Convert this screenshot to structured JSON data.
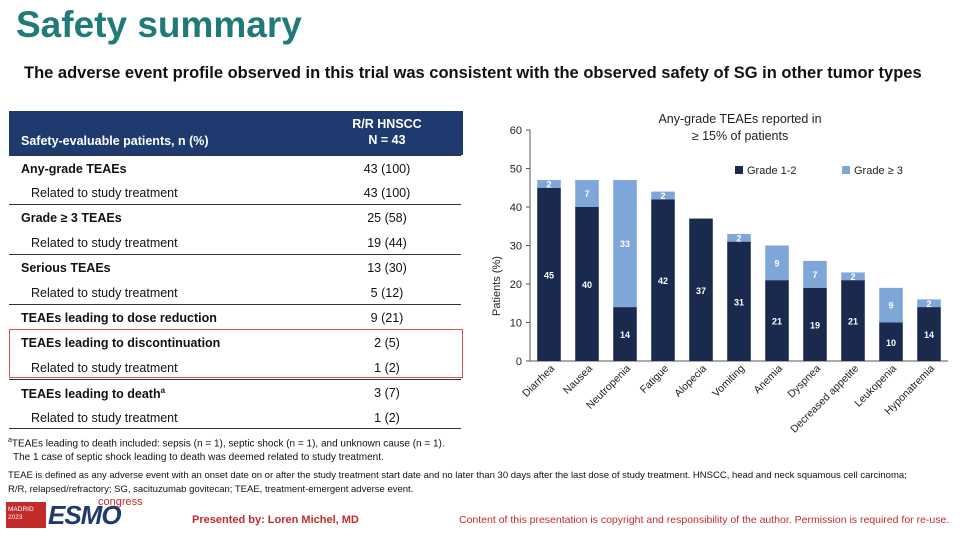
{
  "title": "Safety summary",
  "subtitle": "The adverse event profile observed in this trial was consistent with the observed safety of SG in other tumor types",
  "table": {
    "header_left": "Safety-evaluable patients, n (%)",
    "header_right_line1": "R/R HNSCC",
    "header_right_line2": "N = 43",
    "rows": [
      {
        "label": "Any-grade TEAEs",
        "value": "43 (100)"
      },
      {
        "label": "Related to study treatment",
        "value": "43 (100)"
      },
      {
        "label": "Grade ≥ 3 TEAEs",
        "value": "25 (58)"
      },
      {
        "label": "Related to study treatment",
        "value": "19 (44)"
      },
      {
        "label": "Serious TEAEs",
        "value": "13 (30)"
      },
      {
        "label": "Related to study treatment",
        "value": "5 (12)"
      },
      {
        "label": "TEAEs leading to dose reduction",
        "value": "9 (21)"
      },
      {
        "label": "TEAEs leading to discontinuation",
        "value": "2 (5)"
      },
      {
        "label": "Related to study treatment",
        "value": "1 (2)"
      },
      {
        "label": "TEAEs leading to death",
        "value": "3 (7)"
      },
      {
        "label": "Related to study treatment",
        "value": "1 (2)"
      }
    ],
    "death_superscript": "a"
  },
  "footnotes": {
    "a_marker": "a",
    "a_text": "TEAEs leading to death included: sepsis (n = 1), septic shock (n = 1), and unknown cause (n = 1).",
    "a_text2": "The 1 case of septic shock leading to death was deemed related to study treatment.",
    "definitions_line1": "TEAE is defined as any adverse event with an onset date on or after the study treatment start date and no later than 30 days after the last dose of study treatment. HNSCC, head and neck squamous cell carcinoma;",
    "definitions_line2": "R/R, relapsed/refractory; SG, sacituzumab govitecan; TEAE, treatment-emergent adverse event."
  },
  "footer": {
    "logo_city": "MADRID",
    "logo_year": "2023",
    "logo_name": "ESMO",
    "logo_congress": "congress",
    "presented_by": "Presented by: Loren Michel, MD",
    "copyright": "Content of this presentation is copyright and responsibility of the author. Permission is required for re-use."
  },
  "colors": {
    "title": "#1f7a78",
    "grade12": "#1a2a4f",
    "grade3": "#7ea6d8",
    "accent_red": "#c42b2b"
  },
  "chart_data": {
    "type": "bar",
    "stacked": true,
    "title_line1": "Any-grade TEAEs reported in",
    "title_line2": "≥ 15% of patients",
    "ylabel": "Patients (%)",
    "xlabel": "",
    "ylim": [
      0,
      60
    ],
    "yticks": [
      0,
      10,
      20,
      30,
      40,
      50,
      60
    ],
    "legend_position": "top-right",
    "categories": [
      "Diarrhea",
      "Nausea",
      "Neutropenia",
      "Fatigue",
      "Alopecia",
      "Vomiting",
      "Anemia",
      "Dyspnea",
      "Decreased appetite",
      "Leukopenia",
      "Hyponatremia"
    ],
    "series": [
      {
        "name": "Grade 1-2",
        "values": [
          45,
          40,
          14,
          42,
          37,
          31,
          21,
          19,
          21,
          10,
          14
        ]
      },
      {
        "name": "Grade ≥ 3",
        "values": [
          2,
          7,
          33,
          2,
          0,
          2,
          9,
          7,
          2,
          9,
          2
        ]
      }
    ]
  }
}
